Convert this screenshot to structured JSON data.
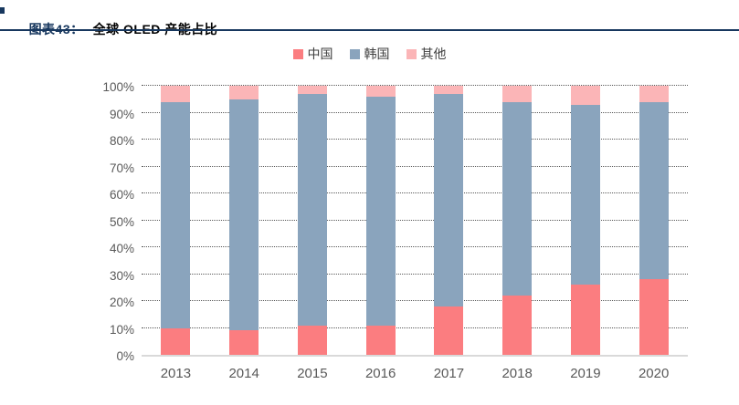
{
  "header": {
    "title_prefix": "图表43：",
    "title_text": "全球 OLED 产能占比"
  },
  "chart_data": {
    "type": "bar",
    "stacked": true,
    "title": "全球 OLED 产能占比",
    "categories": [
      "2013",
      "2014",
      "2015",
      "2016",
      "2017",
      "2018",
      "2019",
      "2020"
    ],
    "series": [
      {
        "name": "中国",
        "color": "#FB7D80",
        "values": [
          10,
          9,
          11,
          11,
          18,
          22,
          26,
          28
        ]
      },
      {
        "name": "韩国",
        "color": "#8AA4BD",
        "values": [
          84,
          86,
          86,
          85,
          79,
          72,
          67,
          66
        ]
      },
      {
        "name": "其他",
        "color": "#FBB5B7",
        "values": [
          6,
          5,
          3,
          4,
          3,
          6,
          7,
          6
        ]
      }
    ],
    "xlabel": "",
    "ylabel": "",
    "ylim": [
      0,
      100
    ],
    "yticks": [
      "0%",
      "10%",
      "20%",
      "30%",
      "40%",
      "50%",
      "60%",
      "70%",
      "80%",
      "90%",
      "100%"
    ],
    "legend_position": "top-center",
    "grid": "horizontal-dotted"
  },
  "colors": {
    "accent_navy": "#17375E",
    "axis_label_gray": "#595959",
    "baseline_gray": "#D9D9D9"
  }
}
